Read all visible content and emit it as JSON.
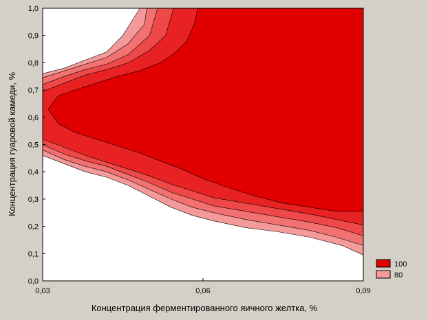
{
  "chart_data": {
    "type": "contour",
    "xlabel": "Концентрация ферментированного яичного желтка, %",
    "ylabel": "Концентрация гуаровой камеди, %",
    "xlim": [
      0.03,
      0.09
    ],
    "ylim": [
      0.0,
      1.0
    ],
    "x_ticks": [
      "0,03",
      "0,06",
      "0,09"
    ],
    "y_ticks": [
      "0,0",
      "0,1",
      "0,2",
      "0,3",
      "0,4",
      "0,5",
      "0,6",
      "0,7",
      "0,8",
      "0,9",
      "1,0"
    ],
    "legend": [
      {
        "label": "100",
        "color": "#e00000"
      },
      {
        "label": "80",
        "color": "#f49a9a"
      }
    ],
    "levels": [
      {
        "color": "#f49a9a",
        "points": [
          [
            0.03,
            0.76
          ],
          [
            0.034,
            0.78
          ],
          [
            0.038,
            0.81
          ],
          [
            0.042,
            0.84
          ],
          [
            0.045,
            0.9
          ],
          [
            0.0482,
            1.0
          ],
          [
            0.09,
            1.0
          ],
          [
            0.09,
            0.095
          ],
          [
            0.086,
            0.13
          ],
          [
            0.08,
            0.16
          ],
          [
            0.074,
            0.18
          ],
          [
            0.068,
            0.195
          ],
          [
            0.062,
            0.22
          ],
          [
            0.058,
            0.24
          ],
          [
            0.054,
            0.27
          ],
          [
            0.05,
            0.31
          ],
          [
            0.046,
            0.35
          ],
          [
            0.042,
            0.38
          ],
          [
            0.038,
            0.4
          ],
          [
            0.034,
            0.43
          ],
          [
            0.03,
            0.46
          ]
        ]
      },
      {
        "color": "#f27272",
        "points": [
          [
            0.03,
            0.745
          ],
          [
            0.034,
            0.77
          ],
          [
            0.038,
            0.795
          ],
          [
            0.042,
            0.82
          ],
          [
            0.046,
            0.87
          ],
          [
            0.049,
            0.94
          ],
          [
            0.0495,
            1.0
          ],
          [
            0.09,
            1.0
          ],
          [
            0.09,
            0.13
          ],
          [
            0.085,
            0.16
          ],
          [
            0.08,
            0.185
          ],
          [
            0.074,
            0.205
          ],
          [
            0.068,
            0.225
          ],
          [
            0.062,
            0.25
          ],
          [
            0.058,
            0.27
          ],
          [
            0.054,
            0.3
          ],
          [
            0.05,
            0.335
          ],
          [
            0.046,
            0.37
          ],
          [
            0.042,
            0.4
          ],
          [
            0.038,
            0.42
          ],
          [
            0.034,
            0.445
          ],
          [
            0.03,
            0.48
          ]
        ]
      },
      {
        "color": "#ee4848",
        "points": [
          [
            0.03,
            0.72
          ],
          [
            0.034,
            0.75
          ],
          [
            0.038,
            0.775
          ],
          [
            0.042,
            0.795
          ],
          [
            0.046,
            0.83
          ],
          [
            0.05,
            0.9
          ],
          [
            0.0515,
            1.0
          ],
          [
            0.09,
            1.0
          ],
          [
            0.09,
            0.165
          ],
          [
            0.085,
            0.195
          ],
          [
            0.08,
            0.215
          ],
          [
            0.074,
            0.235
          ],
          [
            0.068,
            0.255
          ],
          [
            0.062,
            0.275
          ],
          [
            0.058,
            0.3
          ],
          [
            0.054,
            0.325
          ],
          [
            0.05,
            0.36
          ],
          [
            0.046,
            0.39
          ],
          [
            0.042,
            0.42
          ],
          [
            0.038,
            0.44
          ],
          [
            0.034,
            0.465
          ],
          [
            0.03,
            0.5
          ]
        ]
      },
      {
        "color": "#e82222",
        "points": [
          [
            0.03,
            0.695
          ],
          [
            0.034,
            0.725
          ],
          [
            0.038,
            0.755
          ],
          [
            0.042,
            0.775
          ],
          [
            0.046,
            0.8
          ],
          [
            0.05,
            0.845
          ],
          [
            0.053,
            0.9
          ],
          [
            0.0545,
            1.0
          ],
          [
            0.09,
            1.0
          ],
          [
            0.09,
            0.205
          ],
          [
            0.085,
            0.225
          ],
          [
            0.08,
            0.245
          ],
          [
            0.074,
            0.265
          ],
          [
            0.068,
            0.285
          ],
          [
            0.062,
            0.305
          ],
          [
            0.058,
            0.33
          ],
          [
            0.054,
            0.355
          ],
          [
            0.05,
            0.385
          ],
          [
            0.046,
            0.41
          ],
          [
            0.042,
            0.435
          ],
          [
            0.038,
            0.46
          ],
          [
            0.034,
            0.49
          ],
          [
            0.03,
            0.52
          ]
        ]
      },
      {
        "color": "#e00000",
        "points": [
          [
            0.031,
            0.63
          ],
          [
            0.033,
            0.68
          ],
          [
            0.036,
            0.7
          ],
          [
            0.04,
            0.725
          ],
          [
            0.044,
            0.75
          ],
          [
            0.048,
            0.77
          ],
          [
            0.052,
            0.8
          ],
          [
            0.055,
            0.84
          ],
          [
            0.057,
            0.88
          ],
          [
            0.0585,
            0.95
          ],
          [
            0.059,
            1.0
          ],
          [
            0.09,
            1.0
          ],
          [
            0.09,
            0.255
          ],
          [
            0.085,
            0.255
          ],
          [
            0.08,
            0.27
          ],
          [
            0.075,
            0.285
          ],
          [
            0.07,
            0.31
          ],
          [
            0.065,
            0.34
          ],
          [
            0.06,
            0.375
          ],
          [
            0.056,
            0.41
          ],
          [
            0.052,
            0.44
          ],
          [
            0.048,
            0.47
          ],
          [
            0.044,
            0.495
          ],
          [
            0.04,
            0.52
          ],
          [
            0.036,
            0.545
          ],
          [
            0.033,
            0.575
          ]
        ]
      }
    ]
  }
}
